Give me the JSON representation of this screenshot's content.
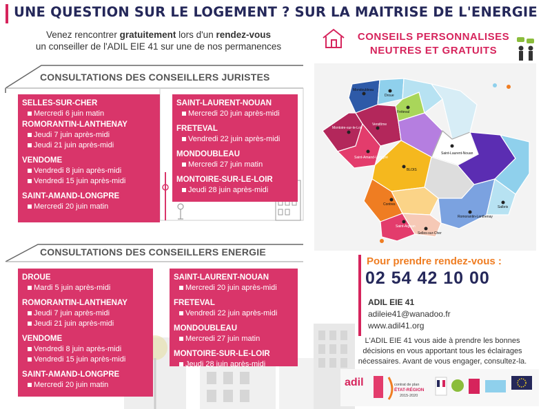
{
  "header": {
    "title": "UNE QUESTION SUR LE LOGEMENT ? SUR LA MAITRISE DE L'ENERGIE ?",
    "intro": {
      "line1_pre": "Venez rencontrer ",
      "line1_bold1": "gratuitement",
      "line1_mid": " lors d'un ",
      "line1_bold2": "rendez-vous",
      "line2": "un conseiller de l'ADIL EIE 41 sur une de nos permanences"
    },
    "conseils_line1": "CONSEILS  PERSONNALISES",
    "conseils_line2": "NEUTRES ET GRATUITS"
  },
  "juristes": {
    "title": "CONSULTATIONS DES CONSEILLERS JURISTES",
    "left": [
      {
        "city": "SELLES-SUR-CHER",
        "slots": [
          "Mercredi 6 juin matin"
        ]
      },
      {
        "city": "ROMORANTIN-LANTHENAY",
        "slots": [
          "Jeudi 7 juin après-midi",
          "Jeudi 21 juin après-midi"
        ]
      },
      {
        "city": "VENDOME",
        "slots": [
          "Vendredi 8 juin après-midi",
          "Vendredi 15 juin après-midi"
        ]
      },
      {
        "city": "SAINT-AMAND-LONGPRE",
        "slots": [
          "Mercredi 20 juin matin"
        ]
      }
    ],
    "right": [
      {
        "city": "SAINT-LAURENT-NOUAN",
        "slots": [
          "Mercredi 20 juin après-midi"
        ]
      },
      {
        "city": "FRETEVAL",
        "slots": [
          "Vendredi 22 juin après-midi"
        ]
      },
      {
        "city": "MONDOUBLEAU",
        "slots": [
          "Mercredi 27 juin matin"
        ]
      },
      {
        "city": "MONTOIRE-SUR-LE-LOIR",
        "slots": [
          "Jeudi 28 juin après-midi"
        ]
      }
    ]
  },
  "energie": {
    "title": "CONSULTATIONS DES CONSEILLERS ENERGIE",
    "left": [
      {
        "city": "DROUE",
        "slots": [
          "Mardi 5 juin après-midi"
        ]
      },
      {
        "city": "ROMORANTIN-LANTHENAY",
        "slots": [
          "Jeudi 7 juin après-midi",
          "Jeudi 21 juin après-midi"
        ]
      },
      {
        "city": "VENDOME",
        "slots": [
          "Vendredi 8 juin après-midi",
          "Vendredi 15 juin après-midi"
        ]
      },
      {
        "city": "SAINT-AMAND-LONGPRE",
        "slots": [
          "Mercredi 20 juin matin"
        ]
      }
    ],
    "right": [
      {
        "city": "SAINT-LAURENT-NOUAN",
        "slots": [
          "Mercredi 20 juin après-midi"
        ]
      },
      {
        "city": "FRETEVAL",
        "slots": [
          "Vendredi 22 juin après-midi"
        ]
      },
      {
        "city": "MONDOUBLEAU",
        "slots": [
          "Mercredi 27 juin matin"
        ]
      },
      {
        "city": "MONTOIRE-SUR-LE-LOIR",
        "slots": [
          "Jeudi 28 juin après-midi"
        ]
      }
    ]
  },
  "map": {
    "labels": {
      "mondoubleau": "Mondoubleau",
      "droue": "Droue",
      "freteval": "Fréteval",
      "montoire": "Montoire-sur-le-Loir",
      "vendome": "Vendôme",
      "saint_amand": "Saint-Amand-Longpré",
      "saint_laurent": "Saint-Laurent-Nouan",
      "blois": "BLOIS",
      "contres": "Contres",
      "saint_aignan": "Saint-Aignan",
      "selles": "Selles-sur-Cher",
      "romorantin": "Romorantin-Lanthenay",
      "salbris": "Salbris"
    }
  },
  "contact": {
    "title": "Pour prendre rendez-vous :",
    "phone": "02 54 42 10 00",
    "org": "ADIL EIE 41",
    "email": "adileie41@wanadoo.fr",
    "website": "www.adil41.org",
    "description": "L'ADIL EIE 41 vous aide à prendre les bonnes décisions en vous apportant tous les éclairages nécessaires. Avant de vous engager, consultez-la."
  },
  "logos": {
    "adil": "adil",
    "region_line1": "contrat de plan",
    "region_line2": "ÉTAT-RÉGION",
    "region_years": "2015-2020"
  },
  "colors": {
    "title_navy": "#25285a",
    "accent_pink": "#d6245c",
    "card_pink": "#d9356a",
    "phone_orange": "#ef7d22"
  }
}
